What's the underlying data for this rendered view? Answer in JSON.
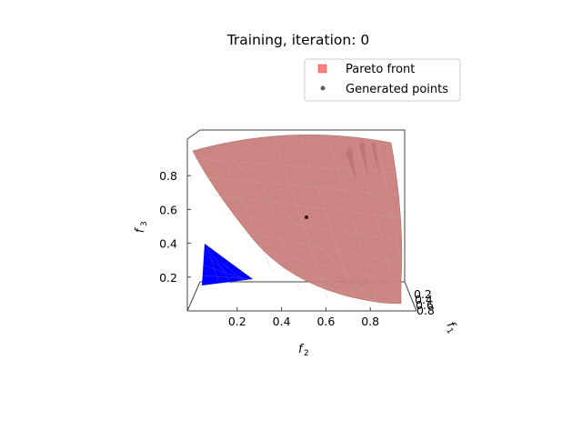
{
  "chart_data": {
    "type": "scatter",
    "projection": "3d",
    "title": "Training, iteration: 0",
    "xlabel": "f1",
    "ylabel": "f2",
    "zlabel": "f3",
    "xlim": [
      0,
      1
    ],
    "ylim": [
      0,
      1
    ],
    "zlim": [
      0,
      1
    ],
    "xticks": [
      "0.2",
      "0.4",
      "0.6",
      "0.8"
    ],
    "yticks": [
      "0.2",
      "0.4",
      "0.6",
      "0.8"
    ],
    "zticks": [
      "0.2",
      "0.4",
      "0.6",
      "0.8"
    ],
    "grid": false,
    "legend_position": "top-right",
    "legend": [
      {
        "label": "Pareto front",
        "marker": "square",
        "color": "#ff7f7f"
      },
      {
        "label": "Generated points",
        "marker": "circle",
        "color": "#606060"
      }
    ],
    "series": [
      {
        "name": "Pareto front",
        "kind": "surface",
        "color": "#c87f7c",
        "description_shape": "spherical octant f1^2+f2^2+f3^2=1"
      },
      {
        "name": "Generated points",
        "kind": "points",
        "color": "#0000ff",
        "points": [
          [
            0.5,
            0.5,
            0.55
          ]
        ]
      }
    ],
    "highlight_patch": {
      "color": "#0000ff",
      "region": "small triangular patch near low f1/f2, low-mid f3"
    }
  }
}
